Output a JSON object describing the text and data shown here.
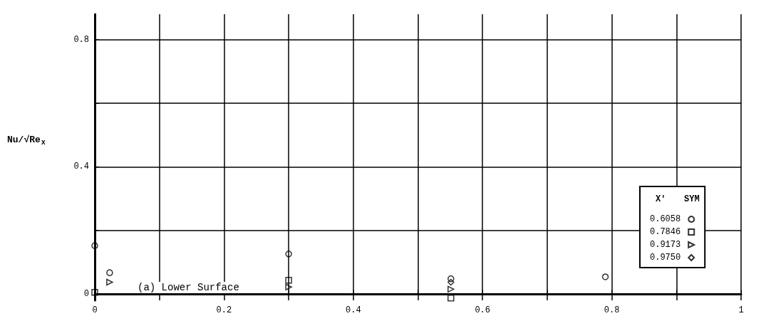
{
  "chart_data": {
    "type": "scatter",
    "ylabel": "Nu/√Re$_{x}$",
    "legend_title": "X'",
    "annotations": [
      "SYM",
      "(a) Lower Surface"
    ],
    "xlim": [
      0,
      1.0
    ],
    "xticks": [
      0,
      {
        "value": 0.1,
        "label": null
      },
      0.2,
      {
        "value": 0.3,
        "label": null
      },
      0.4,
      {
        "value": 0.5,
        "label": null
      },
      0.6,
      {
        "value": 0.7,
        "label": null
      },
      0.8,
      {
        "value": 0.9,
        "label": null
      },
      1.0
    ],
    "ylim": [
      -0.02,
      0.88
    ],
    "yticks": [
      0,
      {
        "value": 0.2,
        "label": null
      },
      0.4,
      {
        "value": 0.6,
        "label": null
      },
      0.8
    ],
    "grid": true,
    "legend": "bottom right",
    "series": [
      {
        "name": "0.6058",
        "color": "#000000",
        "marker": "circle",
        "x": [
          0,
          0.023,
          0.3,
          0.551,
          0.79
        ],
        "values": [
          0.152,
          0.067,
          0.126,
          0.048,
          0.054
        ]
      },
      {
        "name": "0.7846",
        "color": "#000000",
        "marker": "square",
        "x": [
          0,
          0.3,
          0.551
        ],
        "values": [
          0.005,
          0.043,
          -0.013
        ]
      },
      {
        "name": "0.9173",
        "color": "#000000",
        "marker": "triangle",
        "x": [
          0.023,
          0.3,
          0.551
        ],
        "values": [
          0.037,
          0.022,
          0.015
        ]
      },
      {
        "name": "0.9750",
        "color": "#000000",
        "marker": "diamond",
        "x": [
          0.551
        ],
        "values": [
          0.037
        ]
      }
    ]
  }
}
